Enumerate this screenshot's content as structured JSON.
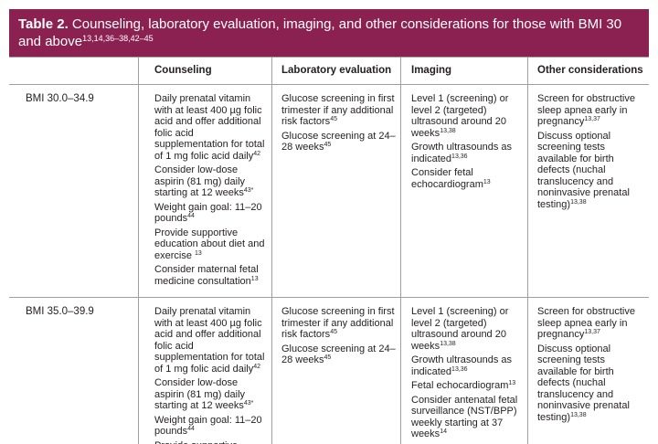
{
  "title": {
    "label": "Table 2.",
    "text": "Counseling, laboratory evaluation, imaging, and other considerations for those with BMI 30 and above",
    "refs": "13,14,36–38,42–45"
  },
  "headers": {
    "counseling": "Counseling",
    "laboratory": "Laboratory evaluation",
    "imaging": "Imaging",
    "other": "Other considerations"
  },
  "rows": [
    {
      "label": "BMI 30.0–34.9",
      "counseling": [
        {
          "text": "Daily prenatal vitamin with at least 400 µg folic acid and offer additional folic acid supplementation for total of 1 mg folic acid daily",
          "ref": "42"
        },
        {
          "text": "Consider low-dose aspirin (81 mg) daily starting at 12 weeks",
          "ref": "43*"
        },
        {
          "text": "Weight gain goal: 11–20 pounds",
          "ref": "44"
        },
        {
          "text": "Provide supportive education about diet and exercise ",
          "ref": "13"
        },
        {
          "text": "Consider maternal fetal medicine consultation",
          "ref": "13"
        }
      ],
      "laboratory": [
        {
          "text": "Glucose screening in first trimester if any additional risk factors",
          "ref": "45"
        },
        {
          "text": "Glucose screening at 24–28 weeks",
          "ref": "45"
        }
      ],
      "imaging": [
        {
          "text": "Level 1 (screening) or level 2 (targeted) ultrasound around 20 weeks",
          "ref": "13,38"
        },
        {
          "text": "Growth ultrasounds as indicated",
          "ref": "13,36"
        },
        {
          "text": "Consider fetal echocardiogram",
          "ref": "13"
        }
      ],
      "other": [
        {
          "text": "Screen for obstructive sleep apnea early in pregnancy",
          "ref": "13,37"
        },
        {
          "text": "Discuss optional screening tests available for birth defects (nuchal translucency and noninvasive prenatal testing)",
          "ref": "13,38"
        }
      ]
    },
    {
      "label": "BMI 35.0–39.9",
      "counseling": [
        {
          "text": "Daily prenatal vitamin with at least 400 µg folic acid and offer additional folic acid supplementation for total of 1 mg folic acid daily",
          "ref": "42"
        },
        {
          "text": "Consider low-dose aspirin (81 mg) daily starting at 12 weeks",
          "ref": "43*"
        },
        {
          "text": "Weight gain goal: 11–20 pounds",
          "ref": "44"
        },
        {
          "text": "Provide supportive",
          "ref": ""
        }
      ],
      "laboratory": [
        {
          "text": "Glucose screening in first trimester if any additional risk factors",
          "ref": "45"
        },
        {
          "text": "Glucose screening at 24–28 weeks",
          "ref": "45"
        }
      ],
      "imaging": [
        {
          "text": "Level 1 (screening) or level 2 (targeted) ultrasound around 20 weeks",
          "ref": "13,38"
        },
        {
          "text": "Growth ultrasounds as indicated",
          "ref": "13,36"
        },
        {
          "text": "Fetal echocardiogram",
          "ref": "13"
        },
        {
          "text": "Consider antenatal fetal surveillance (NST/BPP) weekly starting at 37 weeks",
          "ref": "14"
        }
      ],
      "other": [
        {
          "text": "Screen for obstructive sleep apnea early in pregnancy",
          "ref": "13,37"
        },
        {
          "text": "Discuss optional screening tests available for birth defects (nuchal translucency and noninvasive prenatal testing)",
          "ref": "13,38"
        }
      ]
    }
  ]
}
